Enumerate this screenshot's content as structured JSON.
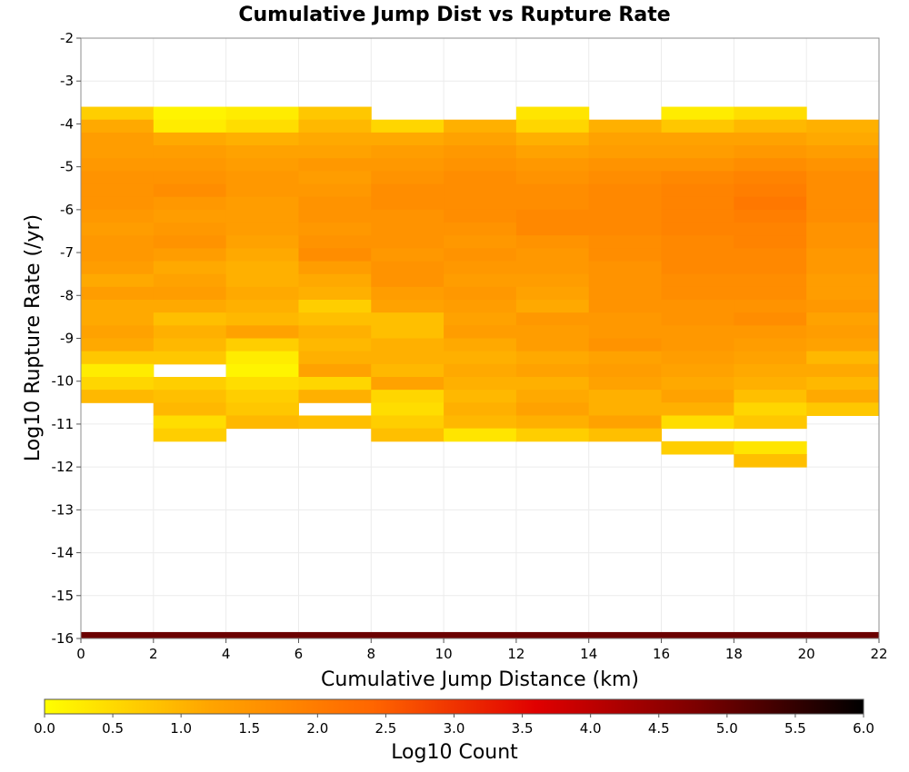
{
  "chart_data": {
    "type": "heatmap",
    "title": "Cumulative Jump Dist vs Rupture Rate",
    "xlabel": "Cumulative Jump Distance (km)",
    "ylabel": "Log10 Rupture Rate (/yr)",
    "xlim": [
      0,
      22
    ],
    "ylim": [
      -16,
      -2
    ],
    "x_ticks": [
      0,
      2,
      4,
      6,
      8,
      10,
      12,
      14,
      16,
      18,
      20,
      22
    ],
    "y_ticks": [
      -2,
      -3,
      -4,
      -5,
      -6,
      -7,
      -8,
      -9,
      -10,
      -11,
      -12,
      -13,
      -14,
      -15,
      -16
    ],
    "x_bin_width": 2,
    "y_bin_height": 0.3,
    "grid": true,
    "colorbar": {
      "label": "Log10 Count",
      "range": [
        0,
        6
      ],
      "ticks": [
        "0.0",
        "0.5",
        "1.0",
        "1.5",
        "2.0",
        "2.5",
        "3.0",
        "3.5",
        "4.0",
        "4.5",
        "5.0",
        "5.5",
        "6.0"
      ],
      "colors": [
        "#ffff00",
        "#ffa500",
        "#ff6600",
        "#e00000",
        "#7a0000",
        "#000000"
      ]
    },
    "columns": [
      {
        "x_start": 0,
        "y_top": -3.6,
        "y_bottom": -9.9,
        "values": [
          0.65,
          1.15,
          1.35,
          1.35,
          1.45,
          1.55,
          1.55,
          1.55,
          1.45,
          1.35,
          1.45,
          1.45,
          1.35,
          1.15,
          1.35,
          1.15,
          1.15,
          1.25,
          1.15,
          0.75,
          0.25,
          0.55,
          0.95
        ]
      },
      {
        "x_start": 2,
        "y_top": -3.6,
        "y_bottom": -10.7,
        "values": [
          0.15,
          0.25,
          1.15,
          1.35,
          1.45,
          1.55,
          1.65,
          1.45,
          1.35,
          1.45,
          1.55,
          1.35,
          1.15,
          1.25,
          1.35,
          1.15,
          0.85,
          1.05,
          0.95,
          0.75,
          null,
          0.65,
          0.85,
          0.95,
          0.45,
          0.65
        ]
      },
      {
        "x_start": 4,
        "y_top": -3.6,
        "y_bottom": -10.4,
        "values": [
          0.25,
          0.45,
          1.05,
          1.25,
          1.35,
          1.45,
          1.45,
          1.35,
          1.35,
          1.35,
          1.25,
          1.15,
          1.05,
          1.05,
          1.15,
          1.05,
          0.95,
          1.25,
          0.65,
          0.25,
          0.15,
          0.45,
          0.65,
          0.75,
          0.95
        ]
      },
      {
        "x_start": 6,
        "y_top": -3.6,
        "y_bottom": -11.0,
        "values": [
          0.75,
          0.95,
          1.15,
          1.25,
          1.45,
          1.35,
          1.45,
          1.55,
          1.55,
          1.45,
          1.55,
          1.65,
          1.35,
          1.15,
          1.05,
          0.65,
          0.85,
          1.05,
          0.95,
          1.05,
          1.25,
          0.55,
          1.05,
          null,
          0.85
        ]
      },
      {
        "x_start": 8,
        "y_top": -3.9,
        "y_bottom": -11.0,
        "values": [
          0.55,
          1.15,
          1.35,
          1.45,
          1.55,
          1.65,
          1.65,
          1.55,
          1.55,
          1.55,
          1.45,
          1.55,
          1.55,
          1.35,
          1.25,
          0.85,
          0.85,
          1.05,
          1.05,
          0.95,
          1.25,
          0.55,
          0.45,
          0.65,
          0.85
        ]
      },
      {
        "x_start": 10,
        "y_top": -3.9,
        "y_bottom": -11.0,
        "values": [
          1.05,
          1.25,
          1.45,
          1.55,
          1.65,
          1.65,
          1.65,
          1.65,
          1.55,
          1.45,
          1.55,
          1.45,
          1.35,
          1.45,
          1.35,
          1.25,
          1.35,
          1.15,
          1.05,
          1.15,
          1.05,
          0.95,
          1.05,
          0.95,
          0.35
        ]
      },
      {
        "x_start": 12,
        "y_top": -3.6,
        "y_bottom": -11.3,
        "values": [
          0.35,
          0.55,
          1.05,
          1.25,
          1.45,
          1.55,
          1.65,
          1.65,
          1.75,
          1.75,
          1.55,
          1.45,
          1.45,
          1.35,
          1.25,
          1.15,
          1.45,
          1.35,
          1.35,
          1.15,
          1.25,
          1.05,
          1.15,
          1.25,
          1.05,
          0.65
        ]
      },
      {
        "x_start": 14,
        "y_top": -3.9,
        "y_bottom": -11.3,
        "values": [
          1.05,
          1.25,
          1.35,
          1.55,
          1.65,
          1.75,
          1.75,
          1.75,
          1.75,
          1.65,
          1.65,
          1.55,
          1.55,
          1.55,
          1.55,
          1.45,
          1.45,
          1.55,
          1.25,
          1.35,
          1.25,
          1.05,
          1.05,
          1.25,
          0.85
        ]
      },
      {
        "x_start": 16,
        "y_top": -3.6,
        "y_bottom": -11.6,
        "values": [
          0.25,
          0.75,
          1.25,
          1.35,
          1.55,
          1.75,
          1.85,
          1.85,
          1.85,
          1.85,
          1.75,
          1.75,
          1.75,
          1.65,
          1.65,
          1.55,
          1.55,
          1.45,
          1.45,
          1.35,
          1.25,
          1.15,
          1.25,
          1.05,
          0.45,
          null,
          0.65
        ]
      },
      {
        "x_start": 18,
        "y_top": -3.6,
        "y_bottom": -12.1,
        "values": [
          0.45,
          0.95,
          1.25,
          1.45,
          1.65,
          1.85,
          1.95,
          2.05,
          1.95,
          1.85,
          1.85,
          1.75,
          1.75,
          1.65,
          1.65,
          1.55,
          1.65,
          1.45,
          1.35,
          1.25,
          1.15,
          1.05,
          0.85,
          0.55,
          0.75,
          null,
          0.35,
          0.85
        ]
      },
      {
        "x_start": 20,
        "y_top": -3.9,
        "y_bottom": -10.7,
        "values": [
          1.05,
          1.15,
          1.35,
          1.55,
          1.65,
          1.65,
          1.65,
          1.65,
          1.55,
          1.55,
          1.45,
          1.45,
          1.35,
          1.35,
          1.45,
          1.25,
          1.35,
          1.25,
          0.95,
          1.15,
          0.95,
          1.15,
          0.75
        ]
      }
    ],
    "bottom_row": {
      "y_bottom": -16.0,
      "y_top": -15.85,
      "color": "#6b0000"
    }
  }
}
